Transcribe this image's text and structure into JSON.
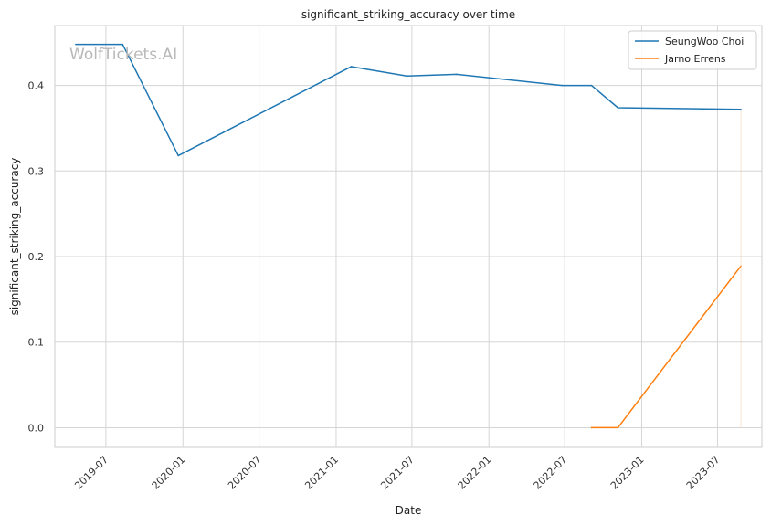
{
  "chart_data": {
    "type": "line",
    "title": "significant_striking_accuracy over time",
    "xlabel": "Date",
    "ylabel": "significant_striking_accuracy",
    "watermark": "WolfTickets.AI",
    "x_axis_type": "date",
    "xlim": [
      "2019-03-01",
      "2023-10-15"
    ],
    "ylim": [
      -0.023,
      0.47
    ],
    "x_ticks": [
      "2019-07",
      "2020-01",
      "2020-07",
      "2021-01",
      "2021-07",
      "2022-01",
      "2022-07",
      "2023-01",
      "2023-07"
    ],
    "y_ticks": [
      "0.0",
      "0.1",
      "0.2",
      "0.3",
      "0.4"
    ],
    "grid": true,
    "legend_position": "top-right",
    "series": [
      {
        "name": "SeungWoo Choi",
        "color": "#1f77b4",
        "x": [
          "2019-04-20",
          "2019-08-10",
          "2019-12-21",
          "2021-02-06",
          "2021-06-19",
          "2021-10-16",
          "2022-06-25",
          "2022-09-03",
          "2022-11-05",
          "2023-08-26"
        ],
        "y": [
          0.448,
          0.448,
          0.318,
          0.422,
          0.411,
          0.413,
          0.4,
          0.4,
          0.374,
          0.372
        ]
      },
      {
        "name": "Jarno Errens",
        "color": "#ff7f0e",
        "x": [
          "2022-09-03",
          "2022-11-05",
          "2023-08-26"
        ],
        "y": [
          0.0,
          0.0,
          0.189
        ]
      }
    ]
  }
}
